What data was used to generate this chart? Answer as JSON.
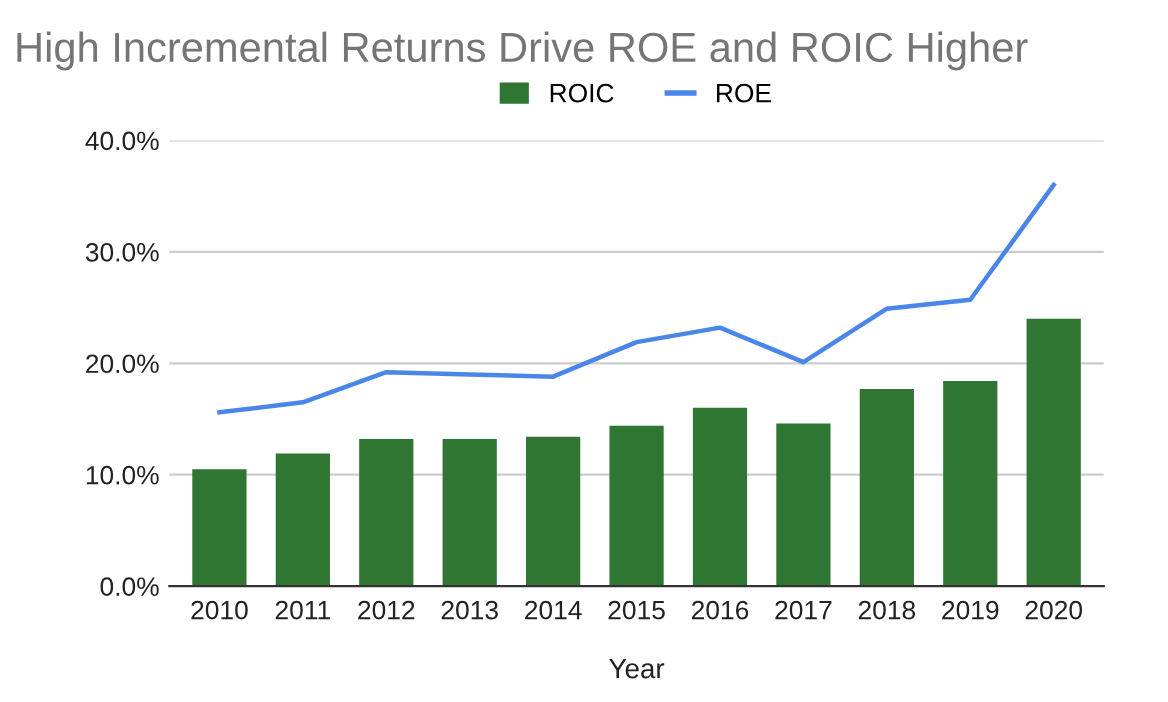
{
  "chart_data": {
    "type": "bar",
    "title": "High Incremental Returns Drive ROE and ROIC Higher",
    "xlabel": "Year",
    "categories": [
      "2010",
      "2011",
      "2012",
      "2013",
      "2014",
      "2015",
      "2016",
      "2017",
      "2018",
      "2019",
      "2020"
    ],
    "series": [
      {
        "name": "ROIC",
        "color": "#2e7631",
        "values": [
          10.5,
          11.9,
          13.2,
          13.2,
          13.4,
          14.4,
          16.0,
          14.6,
          17.7,
          18.4,
          24.0
        ]
      },
      {
        "name": "ROE",
        "type": "line",
        "color": "#4a86e8",
        "values": [
          15.6,
          16.5,
          19.2,
          19.0,
          18.8,
          21.9,
          23.2,
          20.1,
          24.9,
          25.7,
          36.0
        ]
      }
    ],
    "ylim": [
      0,
      40
    ],
    "yticks": [
      {
        "value": 0,
        "label": "0.0%"
      },
      {
        "value": 10,
        "label": "10.0%"
      },
      {
        "value": 20,
        "label": "20.0%"
      },
      {
        "value": 30,
        "label": "30.0%"
      },
      {
        "value": 40,
        "label": "40.0%"
      }
    ],
    "grid": "y",
    "legend": "top",
    "marker": "none",
    "line_style": "solid"
  }
}
